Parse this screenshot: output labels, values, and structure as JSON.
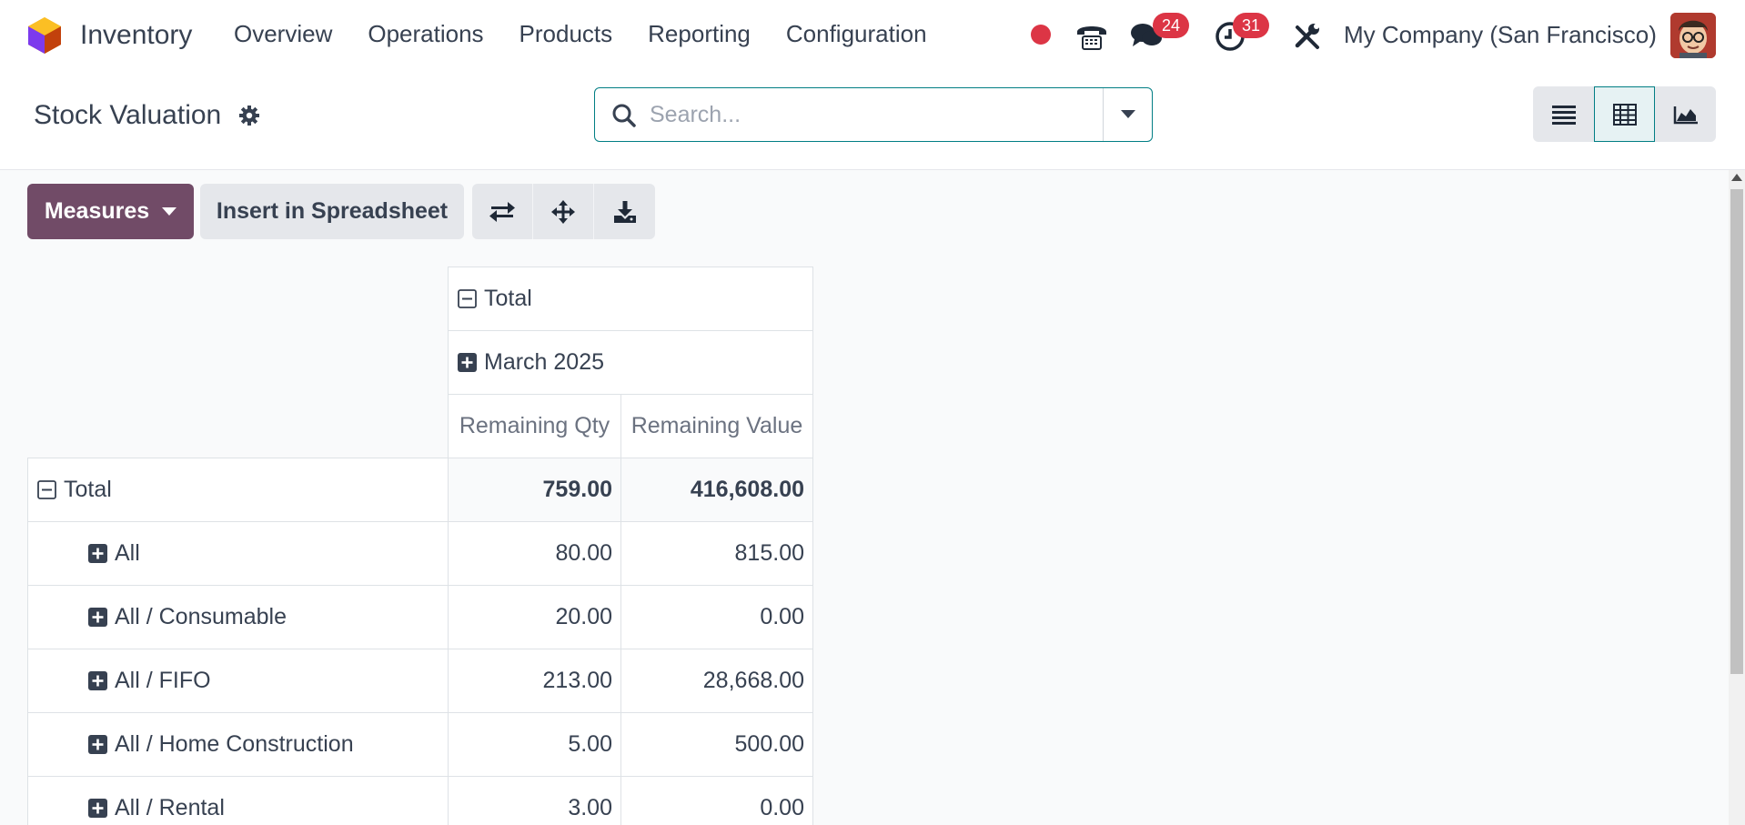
{
  "app": {
    "name": "Inventory"
  },
  "menu": [
    "Overview",
    "Operations",
    "Products",
    "Reporting",
    "Configuration"
  ],
  "systray": {
    "messages_count": "24",
    "activities_count": "31",
    "company": "My Company (San Francisco)"
  },
  "page": {
    "title": "Stock Valuation"
  },
  "search": {
    "placeholder": "Search...",
    "value": ""
  },
  "toolbar": {
    "measures_label": "Measures",
    "insert_label": "Insert in Spreadsheet"
  },
  "pivot": {
    "col_total": "Total",
    "col_period": "March 2025",
    "measures": [
      "Remaining Qty",
      "Remaining Value"
    ],
    "row_total": {
      "label": "Total",
      "qty": "759.00",
      "value": "416,608.00"
    },
    "rows": [
      {
        "label": "All",
        "qty": "80.00",
        "value": "815.00"
      },
      {
        "label": "All / Consumable",
        "qty": "20.00",
        "value": "0.00"
      },
      {
        "label": "All / FIFO",
        "qty": "213.00",
        "value": "28,668.00"
      },
      {
        "label": "All / Home Construction",
        "qty": "5.00",
        "value": "500.00"
      },
      {
        "label": "All / Rental",
        "qty": "3.00",
        "value": "0.00"
      }
    ]
  },
  "colors": {
    "brand": "#714b67",
    "accent": "#017e84",
    "badge": "#dc3545"
  }
}
